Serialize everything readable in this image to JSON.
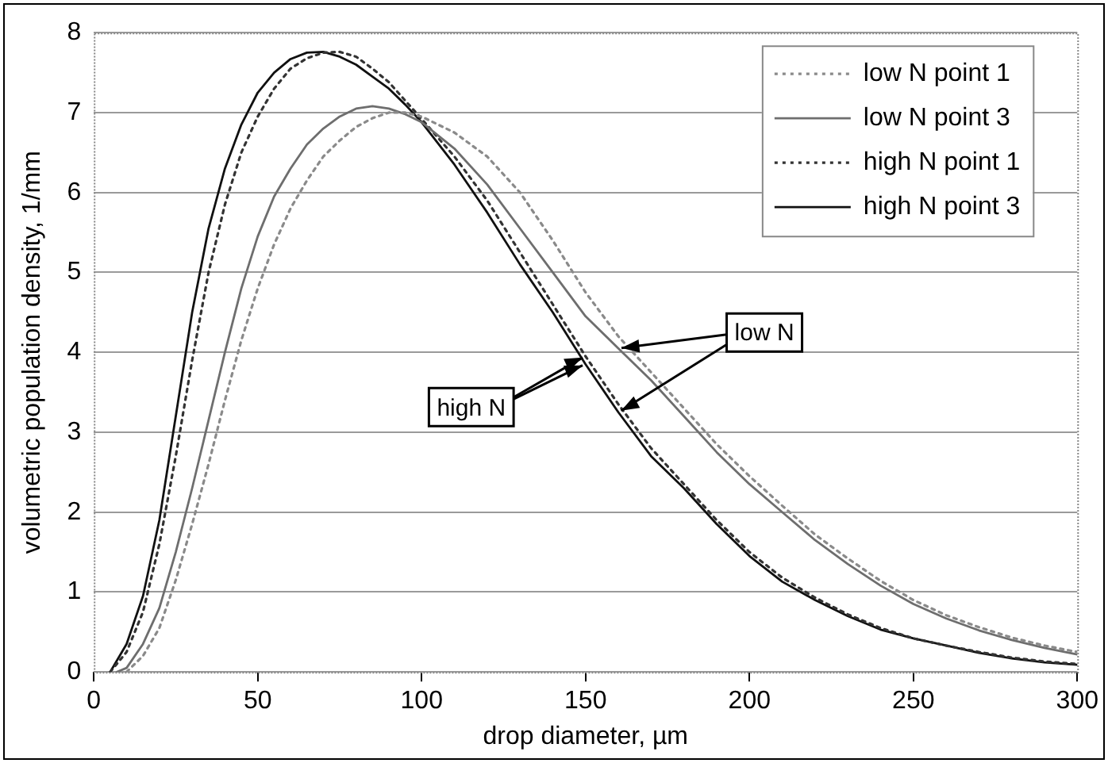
{
  "chart_data": {
    "type": "line",
    "xlabel": "drop diameter, µm",
    "ylabel": "volumetric population density, 1/mm",
    "xlim": [
      0,
      300
    ],
    "xticks": [
      0,
      50,
      100,
      150,
      200,
      250,
      300
    ],
    "ylim": [
      0,
      8
    ],
    "yticks": [
      0,
      1,
      2,
      3,
      4,
      5,
      6,
      7,
      8
    ],
    "grid": "y",
    "legend": "top right",
    "marker": "none",
    "annotations": [
      {
        "text": "low N",
        "x": 160,
        "y": 4.05
      },
      {
        "text": "high N",
        "x": 150,
        "y": 3.85
      }
    ],
    "series": [
      {
        "name": "low N point 1",
        "color": "#8a8a8a",
        "line_style": "dotted",
        "x": [
          10,
          15,
          20,
          25,
          30,
          35,
          40,
          45,
          50,
          55,
          60,
          65,
          70,
          75,
          80,
          85,
          90,
          95,
          100,
          110,
          120,
          130,
          140,
          150,
          160,
          170,
          180,
          190,
          200,
          210,
          220,
          230,
          240,
          250,
          260,
          270,
          280,
          290,
          300
        ],
        "values": [
          0,
          0.2,
          0.55,
          1.15,
          1.85,
          2.6,
          3.4,
          4.15,
          4.8,
          5.35,
          5.8,
          6.15,
          6.45,
          6.65,
          6.82,
          6.93,
          7.0,
          7.0,
          6.95,
          6.75,
          6.45,
          6.0,
          5.4,
          4.75,
          4.2,
          3.75,
          3.3,
          2.85,
          2.45,
          2.08,
          1.72,
          1.42,
          1.14,
          0.9,
          0.71,
          0.56,
          0.43,
          0.33,
          0.25
        ]
      },
      {
        "name": "low N point 3",
        "color": "#6e6e6e",
        "line_style": "solid",
        "x": [
          7,
          10,
          15,
          20,
          25,
          30,
          35,
          40,
          45,
          50,
          55,
          60,
          65,
          70,
          75,
          80,
          85,
          90,
          95,
          100,
          110,
          120,
          130,
          140,
          150,
          160,
          170,
          180,
          190,
          200,
          210,
          220,
          230,
          240,
          250,
          260,
          270,
          280,
          290,
          300
        ],
        "values": [
          0,
          0.05,
          0.35,
          0.8,
          1.5,
          2.3,
          3.15,
          4.0,
          4.8,
          5.45,
          5.95,
          6.3,
          6.6,
          6.8,
          6.95,
          7.05,
          7.08,
          7.05,
          6.98,
          6.88,
          6.55,
          6.1,
          5.55,
          5.0,
          4.45,
          4.05,
          3.65,
          3.2,
          2.75,
          2.35,
          2.0,
          1.65,
          1.35,
          1.08,
          0.85,
          0.67,
          0.52,
          0.4,
          0.3,
          0.22
        ]
      },
      {
        "name": "high N point 1",
        "color": "#333333",
        "line_style": "dotted",
        "x": [
          5,
          10,
          15,
          20,
          25,
          30,
          35,
          40,
          45,
          50,
          55,
          60,
          65,
          70,
          75,
          80,
          85,
          90,
          95,
          100,
          110,
          120,
          130,
          140,
          150,
          160,
          170,
          180,
          190,
          200,
          210,
          220,
          230,
          240,
          250,
          260,
          270,
          280,
          290,
          300
        ],
        "values": [
          0,
          0.25,
          0.75,
          1.6,
          2.7,
          3.9,
          5.0,
          5.85,
          6.5,
          6.95,
          7.3,
          7.55,
          7.68,
          7.75,
          7.76,
          7.7,
          7.55,
          7.38,
          7.15,
          6.92,
          6.45,
          5.9,
          5.25,
          4.6,
          3.95,
          3.35,
          2.8,
          2.35,
          1.9,
          1.5,
          1.18,
          0.93,
          0.72,
          0.55,
          0.42,
          0.33,
          0.25,
          0.18,
          0.13,
          0.1
        ]
      },
      {
        "name": "high N point 3",
        "color": "#111111",
        "line_style": "solid",
        "x": [
          5,
          10,
          15,
          20,
          25,
          30,
          35,
          40,
          45,
          50,
          55,
          60,
          65,
          70,
          75,
          80,
          85,
          90,
          95,
          100,
          110,
          120,
          130,
          140,
          150,
          160,
          170,
          180,
          190,
          200,
          210,
          220,
          230,
          240,
          250,
          260,
          270,
          280,
          290,
          300
        ],
        "values": [
          0,
          0.35,
          0.95,
          1.9,
          3.2,
          4.5,
          5.55,
          6.3,
          6.85,
          7.25,
          7.5,
          7.67,
          7.75,
          7.76,
          7.7,
          7.6,
          7.45,
          7.3,
          7.1,
          6.88,
          6.35,
          5.75,
          5.1,
          4.5,
          3.85,
          3.25,
          2.7,
          2.3,
          1.85,
          1.45,
          1.13,
          0.9,
          0.7,
          0.53,
          0.42,
          0.33,
          0.24,
          0.17,
          0.12,
          0.09
        ]
      }
    ]
  }
}
